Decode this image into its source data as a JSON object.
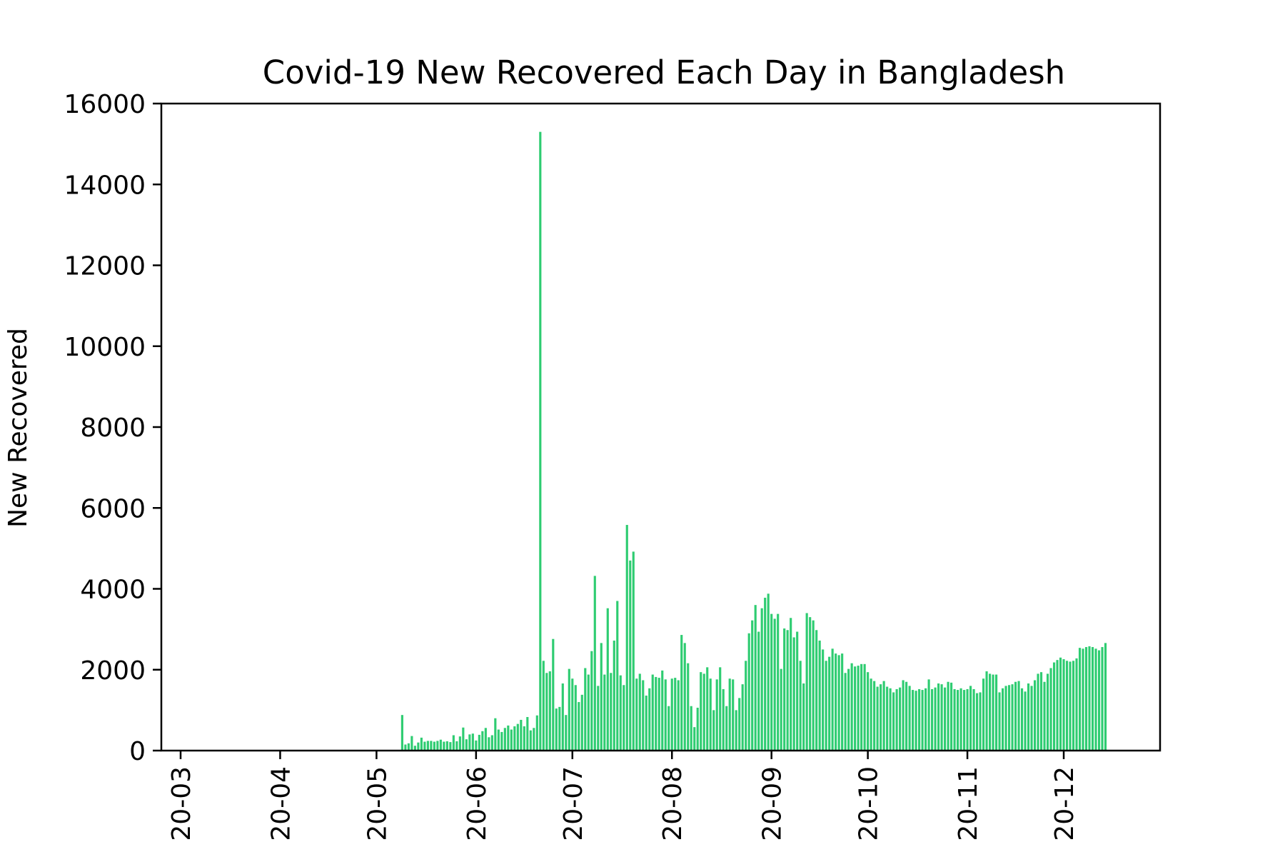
{
  "chart_data": {
    "type": "bar",
    "title": "Covid-19 New Recovered Each Day in Bangladesh",
    "xlabel": "",
    "ylabel": "New Recovered",
    "ylim": [
      0,
      16000
    ],
    "yticks": [
      0,
      2000,
      4000,
      6000,
      8000,
      10000,
      12000,
      14000,
      16000
    ],
    "xlim": [
      "2020-02-24",
      "2020-12-31"
    ],
    "xtick_dates": [
      "2020-03-01",
      "2020-04-01",
      "2020-05-01",
      "2020-06-01",
      "2020-07-01",
      "2020-08-01",
      "2020-09-01",
      "2020-10-01",
      "2020-11-01",
      "2020-12-01"
    ],
    "xtick_labels": [
      "20-03",
      "20-04",
      "20-05",
      "20-06",
      "20-07",
      "20-08",
      "20-09",
      "20-10",
      "20-11",
      "20-12"
    ],
    "bar_color": "#2ecc71",
    "grid": false,
    "legend": "none",
    "start_date": "2020-03-08",
    "series": [
      {
        "values": [
          0,
          0,
          0,
          0,
          0,
          0,
          0,
          0,
          0,
          0,
          0,
          0,
          0,
          0,
          0,
          0,
          0,
          0,
          0,
          0,
          0,
          0,
          0,
          0,
          0,
          0,
          0,
          0,
          0,
          0,
          0,
          0,
          0,
          0,
          0,
          0,
          0,
          0,
          0,
          0,
          0,
          0,
          0,
          0,
          0,
          0,
          0,
          0,
          0,
          0,
          0,
          0,
          0,
          0,
          0,
          0,
          0,
          0,
          0,
          0,
          0,
          0,
          880,
          150,
          180,
          360,
          120,
          200,
          320,
          220,
          240,
          240,
          220,
          240,
          270,
          220,
          230,
          210,
          380,
          230,
          350,
          570,
          280,
          400,
          420,
          250,
          390,
          480,
          560,
          330,
          380,
          800,
          520,
          460,
          560,
          620,
          520,
          600,
          660,
          760,
          600,
          830,
          500,
          560,
          870,
          15300,
          2220,
          1920,
          1960,
          2760,
          1040,
          1080,
          1660,
          880,
          2020,
          1780,
          1620,
          1200,
          1380,
          2040,
          1880,
          2460,
          4320,
          1600,
          2660,
          1880,
          3520,
          1920,
          2720,
          3700,
          1860,
          1620,
          5580,
          4700,
          4920,
          1780,
          1900,
          1740,
          1360,
          1540,
          1880,
          1820,
          1800,
          1980,
          1760,
          1100,
          1780,
          1800,
          1740,
          2860,
          2660,
          2160,
          1100,
          580,
          1060,
          1940,
          1900,
          2060,
          1780,
          1000,
          1760,
          2060,
          1520,
          1100,
          1780,
          1760,
          1000,
          1300,
          1640,
          2220,
          2900,
          3220,
          3600,
          2940,
          3520,
          3780,
          3880,
          3380,
          3260,
          3380,
          2020,
          3020,
          2980,
          3280,
          2800,
          2940,
          2220,
          1660,
          3400,
          3300,
          3220,
          2980,
          2720,
          2500,
          2220,
          2320,
          2520,
          2400,
          2360,
          2400,
          1920,
          2020,
          2160,
          2080,
          2100,
          2140,
          2140,
          1940,
          1780,
          1720,
          1580,
          1640,
          1720,
          1580,
          1540,
          1440,
          1520,
          1560,
          1740,
          1700,
          1600,
          1500,
          1480,
          1520,
          1500,
          1540,
          1760,
          1520,
          1560,
          1660,
          1640,
          1560,
          1700,
          1680,
          1520,
          1500,
          1540,
          1500,
          1520,
          1600,
          1520,
          1420,
          1440,
          1780,
          1960,
          1900,
          1880,
          1880,
          1440,
          1540,
          1600,
          1620,
          1640,
          1700,
          1720,
          1540,
          1460,
          1660,
          1600,
          1740,
          1900,
          1940,
          1700,
          1900,
          2040,
          2180,
          2240,
          2300,
          2260,
          2220,
          2200,
          2220,
          2280,
          2540,
          2520,
          2560,
          2580,
          2560,
          2520,
          2480,
          2560,
          2660
        ]
      }
    ]
  }
}
